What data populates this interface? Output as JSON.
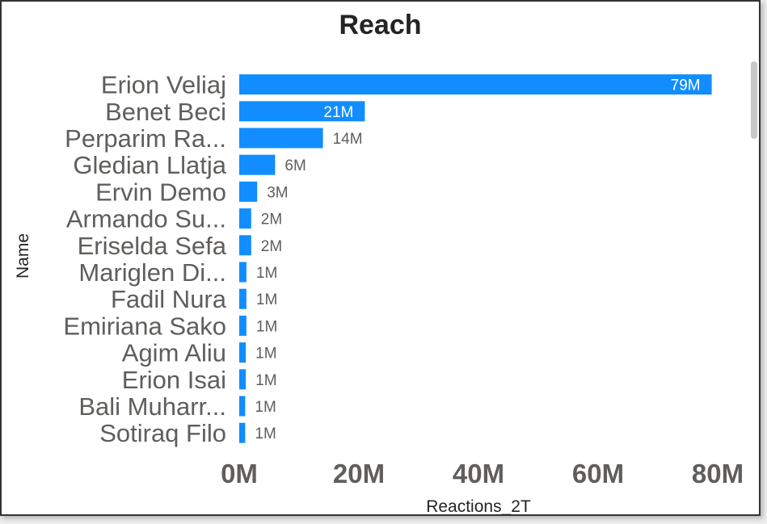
{
  "visual": {
    "title": "Reach",
    "bar_color": "#118DFF"
  },
  "chart_data": {
    "type": "bar",
    "orientation": "horizontal",
    "title": "Reach",
    "xlabel": "Reactions_2T",
    "ylabel": "Name",
    "xlim": [
      0,
      80
    ],
    "x_unit": "M",
    "x_ticks": [
      "0M",
      "20M",
      "40M",
      "60M",
      "80M"
    ],
    "grid": false,
    "legend": "none",
    "categories": [
      "Erion Veliaj",
      "Benet Beci",
      "Perparim Ra...",
      "Gledian Llatja",
      "Ervin Demo",
      "Armando Su...",
      "Eriselda Sefa",
      "Mariglen Di...",
      "Fadil Nura",
      "Emiriana Sako",
      "Agim Aliu",
      "Erion Isai",
      "Bali Muharr...",
      "Sotiraq Filo"
    ],
    "values": [
      79,
      21,
      14,
      6,
      3,
      2,
      2,
      1.2,
      1.2,
      1.2,
      1.1,
      1.1,
      1.0,
      1.0
    ],
    "data_labels": [
      "79M",
      "21M",
      "14M",
      "6M",
      "3M",
      "2M",
      "2M",
      "1M",
      "1M",
      "1M",
      "1M",
      "1M",
      "1M",
      "1M"
    ]
  }
}
